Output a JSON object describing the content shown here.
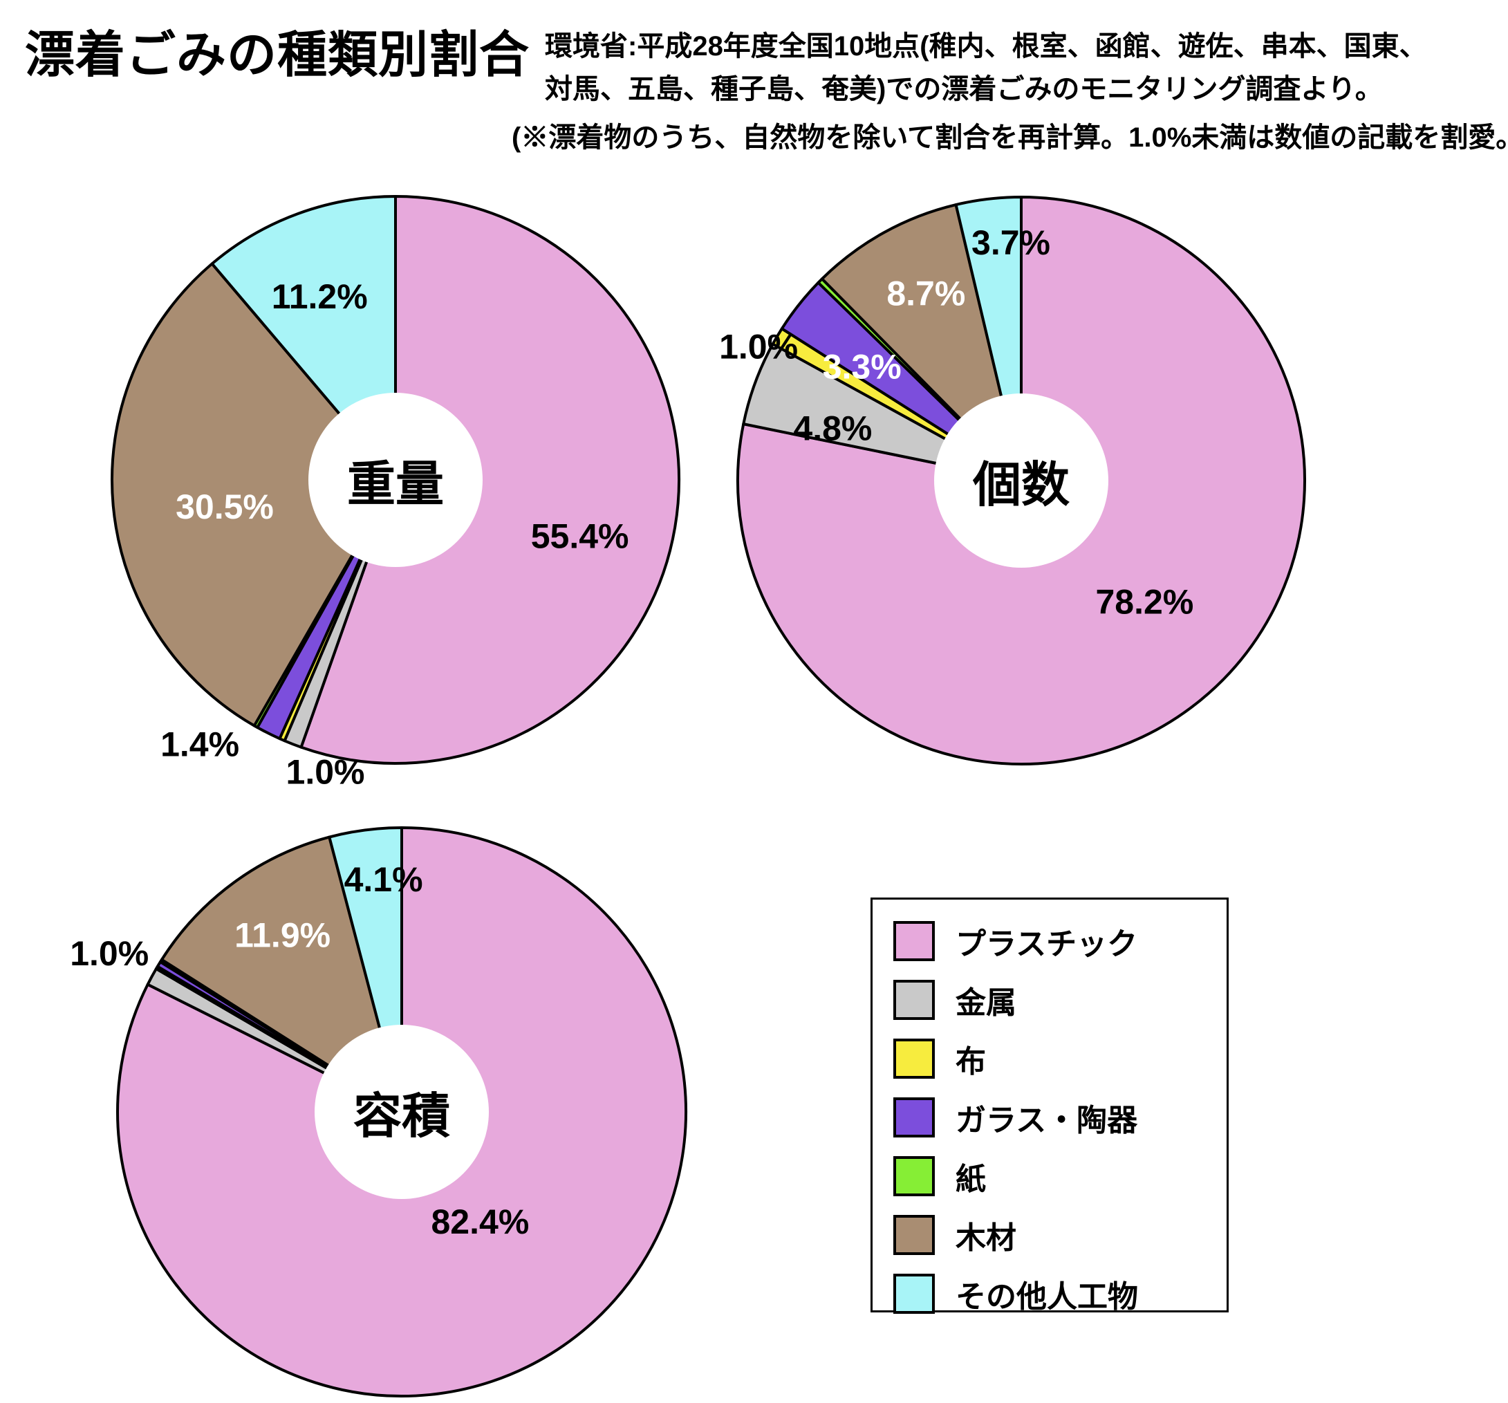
{
  "header": {
    "title": "漂着ごみの種類別割合",
    "source_line1": "環境省:平成28年度全国10地点(稚内、根室、函館、遊佐、串本、国東、",
    "source_line2": "対馬、五島、種子島、奄美)での漂着ごみのモニタリング調査より。",
    "note": "(※漂着物のうち、自然物を除いて割合を再計算。1.0%未満は数値の記載を割愛。)"
  },
  "colors": {
    "plastic": "#E7A9DC",
    "metal": "#C9C9C9",
    "cloth": "#F7EC3E",
    "glass_ceramic": "#7C4EDC",
    "paper": "#86EE35",
    "wood": "#A98D72",
    "other_artificial": "#A8F4F7",
    "outline": "#000000",
    "label_dark": "#000000",
    "label_light": "#FFFFFF"
  },
  "legend": {
    "items": [
      {
        "label": "プラスチック",
        "color": "#E7A9DC"
      },
      {
        "label": "金属",
        "color": "#C9C9C9"
      },
      {
        "label": "布",
        "color": "#F7EC3E"
      },
      {
        "label": "ガラス・陶器",
        "color": "#7C4EDC"
      },
      {
        "label": "紙",
        "color": "#86EE35"
      },
      {
        "label": "木材",
        "color": "#A98D72"
      },
      {
        "label": "その他人工物",
        "color": "#A8F4F7"
      }
    ]
  },
  "chart_data": [
    {
      "type": "pie",
      "title": "重量",
      "categories": [
        "プラスチック",
        "金属",
        "布",
        "ガラス・陶器",
        "紙",
        "木材",
        "その他人工物"
      ],
      "values": [
        55.4,
        1.0,
        0.3,
        1.4,
        0.2,
        30.5,
        11.2
      ],
      "slice_labels": [
        "55.4%",
        "1.0%",
        "",
        "1.4%",
        "",
        "30.5%",
        "11.2%"
      ],
      "start_angle_deg": 0,
      "direction": "clockwise",
      "donut": true
    },
    {
      "type": "pie",
      "title": "個数",
      "categories": [
        "プラスチック",
        "金属",
        "布",
        "ガラス・陶器",
        "紙",
        "木材",
        "その他人工物"
      ],
      "values": [
        78.2,
        4.8,
        1.0,
        3.3,
        0.3,
        8.7,
        3.7
      ],
      "slice_labels": [
        "78.2%",
        "4.8%",
        "1.0%",
        "3.3%",
        "",
        "8.7%",
        "3.7%"
      ],
      "start_angle_deg": 0,
      "direction": "clockwise",
      "donut": true
    },
    {
      "type": "pie",
      "title": "容積",
      "categories": [
        "プラスチック",
        "金属",
        "布",
        "ガラス・陶器",
        "紙",
        "木材",
        "その他人工物"
      ],
      "values": [
        82.4,
        1.0,
        0.15,
        0.3,
        0.15,
        11.9,
        4.1
      ],
      "slice_labels": [
        "82.4%",
        "1.0%",
        "",
        "",
        "",
        "11.9%",
        "4.1%"
      ],
      "start_angle_deg": 0,
      "direction": "clockwise",
      "donut": true
    }
  ]
}
